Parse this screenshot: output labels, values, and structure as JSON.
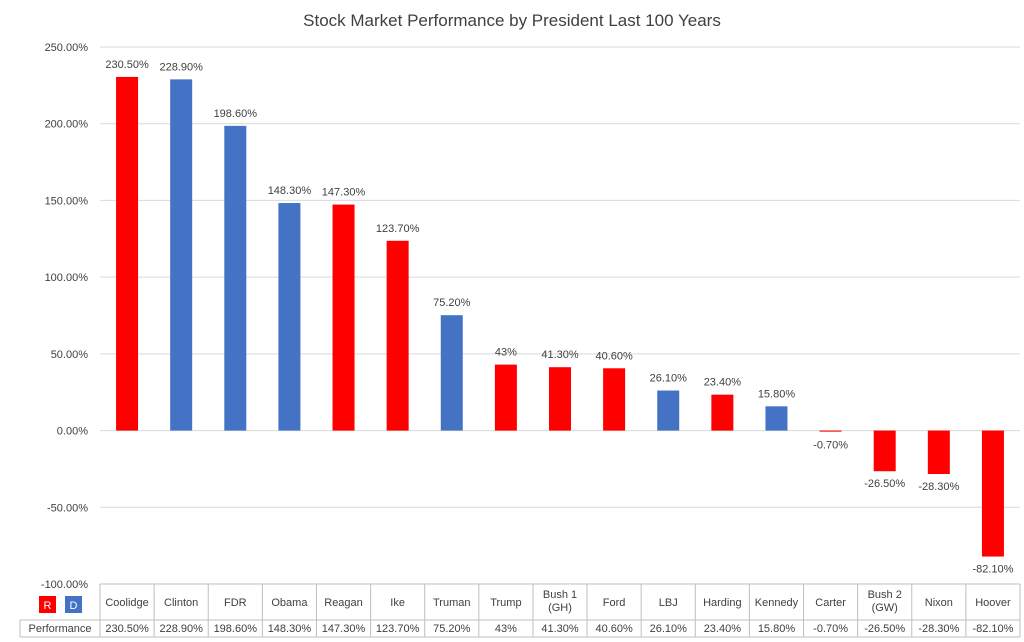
{
  "chart_data": {
    "type": "bar",
    "title": "Stock Market Performance by President Last 100 Years",
    "categories": [
      [
        "Coolidge"
      ],
      [
        "Clinton"
      ],
      [
        "FDR"
      ],
      [
        "Obama"
      ],
      [
        "Reagan"
      ],
      [
        "Ike"
      ],
      [
        "Truman"
      ],
      [
        "Trump"
      ],
      [
        "Bush 1",
        "(GH)"
      ],
      [
        "Ford"
      ],
      [
        "LBJ"
      ],
      [
        "Harding"
      ],
      [
        "Kennedy"
      ],
      [
        "Carter"
      ],
      [
        "Bush 2",
        "(GW)"
      ],
      [
        "Nixon"
      ],
      [
        "Hoover"
      ]
    ],
    "values": [
      230.5,
      228.9,
      198.6,
      148.3,
      147.3,
      123.7,
      75.2,
      43,
      41.3,
      40.6,
      26.1,
      23.4,
      15.8,
      -0.7,
      -26.5,
      -28.3,
      -82.1
    ],
    "value_labels": [
      "230.50%",
      "228.90%",
      "198.60%",
      "148.30%",
      "147.30%",
      "123.70%",
      "75.20%",
      "43%",
      "41.30%",
      "40.60%",
      "26.10%",
      "23.40%",
      "15.80%",
      "-0.70%",
      "-26.50%",
      "-28.30%",
      "-82.10%"
    ],
    "party": [
      "R",
      "D",
      "D",
      "D",
      "R",
      "R",
      "D",
      "R",
      "R",
      "R",
      "D",
      "R",
      "D",
      "R",
      "R",
      "R",
      "R"
    ],
    "colors": {
      "R": "#ff0000",
      "D": "#4472c4"
    },
    "ylim": [
      -100,
      250
    ],
    "yticks": [
      250,
      200,
      150,
      100,
      50,
      0,
      -50,
      -100
    ],
    "ytick_labels": [
      "250.00%",
      "200.00%",
      "150.00%",
      "100.00%",
      "50.00%",
      "0.00%",
      "-50.00%",
      "-100.00%"
    ],
    "grid": true,
    "legend": [
      {
        "key": "R",
        "label": "R"
      },
      {
        "key": "D",
        "label": "D"
      }
    ],
    "table_row_label": "Performance"
  }
}
